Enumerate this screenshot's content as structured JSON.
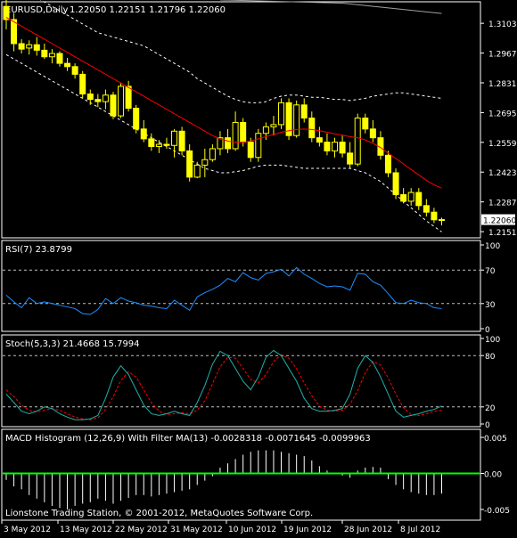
{
  "chart_data": [
    {
      "type": "candlestick",
      "title": "EURUSD,Daily",
      "ohlc_header": "1.22050 1.22151 1.21796 1.22060",
      "yticks": [
        "1.31030",
        "1.29670",
        "1.28310",
        "1.26950",
        "1.25590",
        "1.24230",
        "1.22870",
        "1.21510"
      ],
      "current_price": "1.22060",
      "ylim": [
        1.2135,
        1.3185
      ],
      "candles": [
        [
          1.318,
          1.321,
          1.3075,
          1.312
        ],
        [
          1.312,
          1.315,
          1.2975,
          1.301
        ],
        [
          1.301,
          1.303,
          1.2965,
          1.2985
        ],
        [
          1.299,
          1.3025,
          1.296,
          1.3005
        ],
        [
          1.3005,
          1.304,
          1.2955,
          1.298
        ],
        [
          1.298,
          1.301,
          1.294,
          1.295
        ],
        [
          1.295,
          1.2985,
          1.292,
          1.2965
        ],
        [
          1.2965,
          1.2975,
          1.2905,
          1.292
        ],
        [
          1.292,
          1.2945,
          1.2885,
          1.2905
        ],
        [
          1.2905,
          1.292,
          1.285,
          1.287
        ],
        [
          1.287,
          1.2885,
          1.276,
          1.278
        ],
        [
          1.278,
          1.28,
          1.273,
          1.2755
        ],
        [
          1.2755,
          1.278,
          1.272,
          1.2745
        ],
        [
          1.2745,
          1.28,
          1.271,
          1.2775
        ],
        [
          1.2775,
          1.279,
          1.2665,
          1.268
        ],
        [
          1.268,
          1.283,
          1.267,
          1.2815
        ],
        [
          1.2815,
          1.284,
          1.27,
          1.2715
        ],
        [
          1.2715,
          1.273,
          1.26,
          1.262
        ],
        [
          1.262,
          1.266,
          1.256,
          1.2575
        ],
        [
          1.2575,
          1.26,
          1.252,
          1.254
        ],
        [
          1.254,
          1.257,
          1.251,
          1.255
        ],
        [
          1.255,
          1.258,
          1.253,
          1.2545
        ],
        [
          1.2545,
          1.262,
          1.249,
          1.261
        ],
        [
          1.261,
          1.263,
          1.25,
          1.252
        ],
        [
          1.252,
          1.255,
          1.238,
          1.24
        ],
        [
          1.24,
          1.247,
          1.2395,
          1.2455
        ],
        [
          1.2455,
          1.253,
          1.24,
          1.248
        ],
        [
          1.248,
          1.255,
          1.247,
          1.253
        ],
        [
          1.253,
          1.261,
          1.25,
          1.258
        ],
        [
          1.258,
          1.262,
          1.251,
          1.253
        ],
        [
          1.253,
          1.27,
          1.252,
          1.265
        ],
        [
          1.265,
          1.267,
          1.254,
          1.256
        ],
        [
          1.256,
          1.258,
          1.247,
          1.249
        ],
        [
          1.249,
          1.262,
          1.247,
          1.26
        ],
        [
          1.26,
          1.265,
          1.257,
          1.263
        ],
        [
          1.263,
          1.268,
          1.259,
          1.264
        ],
        [
          1.264,
          1.276,
          1.262,
          1.274
        ],
        [
          1.274,
          1.276,
          1.257,
          1.259
        ],
        [
          1.259,
          1.275,
          1.258,
          1.273
        ],
        [
          1.273,
          1.276,
          1.265,
          1.267
        ],
        [
          1.267,
          1.27,
          1.256,
          1.258
        ],
        [
          1.258,
          1.263,
          1.254,
          1.256
        ],
        [
          1.256,
          1.26,
          1.25,
          1.252
        ],
        [
          1.252,
          1.258,
          1.249,
          1.256
        ],
        [
          1.256,
          1.259,
          1.249,
          1.251
        ],
        [
          1.251,
          1.256,
          1.244,
          1.246
        ],
        [
          1.246,
          1.269,
          1.245,
          1.267
        ],
        [
          1.267,
          1.269,
          1.26,
          1.262
        ],
        [
          1.262,
          1.266,
          1.256,
          1.258
        ],
        [
          1.258,
          1.261,
          1.248,
          1.25
        ],
        [
          1.25,
          1.252,
          1.24,
          1.242
        ],
        [
          1.242,
          1.244,
          1.23,
          1.232
        ],
        [
          1.232,
          1.235,
          1.228,
          1.229
        ],
        [
          1.229,
          1.235,
          1.227,
          1.233
        ],
        [
          1.233,
          1.235,
          1.225,
          1.227
        ],
        [
          1.227,
          1.23,
          1.222,
          1.224
        ],
        [
          1.224,
          1.226,
          1.219,
          1.2205
        ],
        [
          1.2205,
          1.2215,
          1.218,
          1.2206
        ]
      ],
      "ma": [
        1.313,
        1.311,
        1.309,
        1.307,
        1.305,
        1.303,
        1.301,
        1.299,
        1.297,
        1.295,
        1.293,
        1.291,
        1.289,
        1.287,
        1.285,
        1.283,
        1.281,
        1.279,
        1.277,
        1.275,
        1.273,
        1.271,
        1.269,
        1.267,
        1.265,
        1.263,
        1.261,
        1.259,
        1.2575,
        1.2565,
        1.256,
        1.256,
        1.2565,
        1.2575,
        1.2585,
        1.2595,
        1.2605,
        1.2612,
        1.2618,
        1.262,
        1.2618,
        1.2612,
        1.2605,
        1.2598,
        1.2592,
        1.2585,
        1.258,
        1.257,
        1.2555,
        1.2535,
        1.251,
        1.2485,
        1.246,
        1.2435,
        1.241,
        1.2385,
        1.2365,
        1.235
      ],
      "bb_upper": [
        1.33,
        1.328,
        1.326,
        1.324,
        1.322,
        1.32,
        1.318,
        1.316,
        1.314,
        1.312,
        1.31,
        1.308,
        1.306,
        1.305,
        1.304,
        1.303,
        1.302,
        1.301,
        1.3,
        1.298,
        1.296,
        1.294,
        1.292,
        1.29,
        1.288,
        1.285,
        1.283,
        1.281,
        1.279,
        1.277,
        1.2755,
        1.2745,
        1.274,
        1.274,
        1.2745,
        1.276,
        1.277,
        1.2775,
        1.2775,
        1.277,
        1.2765,
        1.2765,
        1.276,
        1.2755,
        1.2755,
        1.275,
        1.2755,
        1.276,
        1.277,
        1.2775,
        1.278,
        1.2785,
        1.2785,
        1.278,
        1.2775,
        1.277,
        1.2765,
        1.276
      ],
      "bb_lower": [
        1.296,
        1.294,
        1.292,
        1.29,
        1.288,
        1.286,
        1.284,
        1.282,
        1.28,
        1.278,
        1.276,
        1.274,
        1.272,
        1.27,
        1.268,
        1.266,
        1.264,
        1.262,
        1.26,
        1.258,
        1.256,
        1.254,
        1.252,
        1.25,
        1.248,
        1.246,
        1.244,
        1.243,
        1.242,
        1.242,
        1.2425,
        1.243,
        1.244,
        1.245,
        1.2455,
        1.2455,
        1.2455,
        1.245,
        1.2445,
        1.244,
        1.244,
        1.244,
        1.244,
        1.244,
        1.244,
        1.244,
        1.243,
        1.242,
        1.24,
        1.238,
        1.235,
        1.232,
        1.229,
        1.226,
        1.223,
        1.22,
        1.2175,
        1.215
      ],
      "long_ma": [
        [
          28,
          1.321
        ],
        [
          44,
          1.3195
        ],
        [
          57,
          1.3148
        ]
      ]
    },
    {
      "type": "line",
      "title": "RSI(7) 23.8799",
      "yticks": [
        "100",
        "70",
        "30",
        "0"
      ],
      "ylim": [
        0,
        100
      ],
      "levels": [
        70,
        30
      ],
      "values": [
        40,
        32,
        25,
        37,
        30,
        32,
        30,
        28,
        26,
        24,
        18,
        17,
        23,
        36,
        30,
        37,
        33,
        31,
        28,
        27,
        25,
        24,
        34,
        28,
        22,
        38,
        43,
        47,
        52,
        60,
        56,
        67,
        61,
        58,
        66,
        68,
        71,
        63,
        73,
        65,
        60,
        54,
        50,
        51,
        50,
        46,
        66,
        65,
        56,
        52,
        42,
        31,
        30,
        34,
        31,
        30,
        25,
        24
      ]
    },
    {
      "type": "line",
      "title": "Stoch(5,3,3) 21.4668 15.7994",
      "yticks": [
        "100",
        "80",
        "20",
        "0"
      ],
      "ylim": [
        0,
        100
      ],
      "levels": [
        80,
        20
      ],
      "series": [
        {
          "values": [
            35,
            25,
            15,
            12,
            15,
            20,
            18,
            12,
            8,
            5,
            5,
            6,
            10,
            30,
            55,
            68,
            58,
            40,
            22,
            12,
            10,
            12,
            15,
            12,
            10,
            25,
            45,
            70,
            85,
            80,
            65,
            50,
            40,
            55,
            78,
            86,
            80,
            65,
            50,
            30,
            18,
            15,
            15,
            16,
            18,
            35,
            65,
            80,
            72,
            55,
            35,
            15,
            8,
            10,
            12,
            15,
            17,
            21
          ]
        },
        {
          "values": [
            40,
            32,
            22,
            16,
            14,
            16,
            18,
            16,
            12,
            8,
            6,
            5,
            7,
            17,
            32,
            51,
            61,
            55,
            40,
            25,
            15,
            11,
            12,
            13,
            12,
            16,
            27,
            47,
            67,
            78,
            77,
            65,
            52,
            48,
            58,
            73,
            81,
            77,
            65,
            48,
            33,
            21,
            16,
            15,
            16,
            23,
            39,
            60,
            73,
            69,
            54,
            35,
            19,
            11,
            10,
            12,
            15,
            16
          ]
        }
      ]
    },
    {
      "type": "bar",
      "title": "MACD Histogram (12,26,9) With Filter MA(13) -0.0028318 -0.0071645 -0.0099963",
      "yticks": [
        "0.005",
        "0.00",
        "-0.005"
      ],
      "ylim": [
        -0.0055,
        0.0055
      ],
      "values": [
        -0.0009,
        -0.0018,
        -0.0022,
        -0.003,
        -0.0035,
        -0.004,
        -0.0045,
        -0.0048,
        -0.005,
        -0.0045,
        -0.0042,
        -0.004,
        -0.0035,
        -0.0038,
        -0.0042,
        -0.0038,
        -0.0034,
        -0.003,
        -0.003,
        -0.0032,
        -0.003,
        -0.0028,
        -0.0026,
        -0.0024,
        -0.0022,
        -0.0016,
        -0.001,
        -0.0004,
        0.0008,
        0.0014,
        0.002,
        0.0026,
        0.003,
        0.0032,
        0.0032,
        0.0032,
        0.003,
        0.0028,
        0.0026,
        0.0024,
        0.0018,
        0.001,
        0.0004,
        -0.0001,
        -0.0003,
        -0.0006,
        0.0004,
        0.0008,
        0.0009,
        0.0008,
        -0.0008,
        -0.0016,
        -0.0022,
        -0.0026,
        -0.0028,
        -0.003,
        -0.003,
        -0.0028
      ],
      "copyright": "Lionstone Trading Station, © 2001-2012, MetaQuotes Software Corp."
    }
  ],
  "xlabels": [
    "3 May 2012",
    "13 May 2012",
    "22 May 2012",
    "31 May 2012",
    "10 Jun 2012",
    "19 Jun 2012",
    "28 Jun 2012",
    "8 Jul 2012"
  ],
  "colors": {
    "background": "#000000",
    "frame": "#ffffff",
    "candle": "#ffff00",
    "ma": "#ff0000",
    "bands": "#ffffff",
    "long_ma": "#a0a0a0",
    "rsi": "#1e90ff",
    "stoch_main": "#20b2aa",
    "stoch_signal": "#ff0000",
    "level": "#c0c0c0",
    "macd_bar": "#ffffff",
    "zero_line": "#00ff00",
    "price_box": "#ffffff"
  }
}
